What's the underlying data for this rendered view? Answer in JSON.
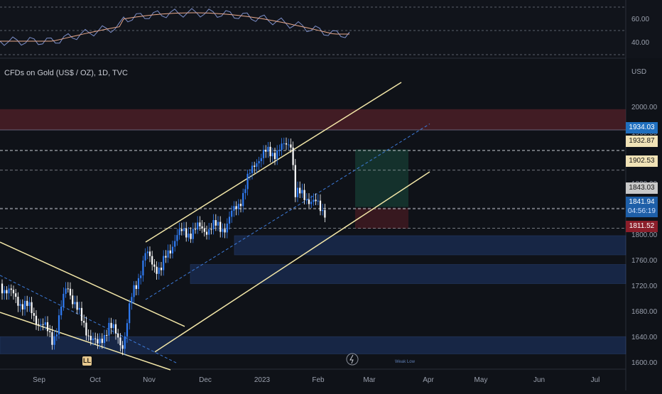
{
  "title": "CFDs on Gold (US$ / OZ), 1D, TVC",
  "currency": "USD",
  "rsi": {
    "ticks": [
      "60.00",
      "40.00"
    ]
  },
  "price_tags": [
    {
      "label": "1934.03",
      "bg": "#1f6fbf",
      "fg": "#ffffff"
    },
    {
      "label": "1932.87",
      "bg": "#f0e2b6",
      "fg": "#1a1a1a"
    },
    {
      "label": "1902.53",
      "bg": "#f0e2b6",
      "fg": "#1a1a1a"
    },
    {
      "label": "1843.03",
      "bg": "#c8c8c8",
      "fg": "#1a1a1a"
    },
    {
      "label": "1841.94",
      "bg": "#1e5fa8",
      "fg": "#ffffff"
    },
    {
      "label": "04:56:19",
      "bg": "#1e5fa8",
      "fg": "#cfe0ff"
    },
    {
      "label": "1811.52",
      "bg": "#8b1e2a",
      "fg": "#ffffff"
    }
  ],
  "badges": {
    "ll": "LL",
    "weak_low": "Weak Low"
  },
  "colors": {
    "background": "#0f1218",
    "channel": "#f3e7a8",
    "up_candle": "#2f7cf6",
    "down_candle": "#ffffff",
    "supply_zone": "#6b2530",
    "demand_zone": "#1f3b73"
  },
  "chart_data": {
    "type": "candlestick",
    "title": "CFDs on Gold (US$ / OZ), 1D, TVC",
    "ylabel": "USD",
    "ylim": [
      1600,
      2040
    ],
    "y_ticks": [
      "2000.00",
      "1960.00",
      "1920.00",
      "1880.00",
      "1840.00",
      "1800.00",
      "1760.00",
      "1720.00",
      "1680.00",
      "1640.00",
      "1600.00"
    ],
    "x_ticks": [
      "Sep",
      "Oct",
      "Nov",
      "Dec",
      "2023",
      "Feb",
      "Mar",
      "Apr",
      "May",
      "Jun",
      "Jul"
    ],
    "close_path": [
      [
        "Aug 29",
        1725
      ],
      [
        "Sep 5",
        1705
      ],
      [
        "Sep 12",
        1690
      ],
      [
        "Sep 19",
        1665
      ],
      [
        "Sep 26",
        1640
      ],
      [
        "Sep 28",
        1650
      ],
      [
        "Oct 4",
        1725
      ],
      [
        "Oct 11",
        1670
      ],
      [
        "Oct 20",
        1625
      ],
      [
        "Oct 26",
        1660
      ],
      [
        "Nov 3",
        1630
      ],
      [
        "Nov 8",
        1710
      ],
      [
        "Nov 15",
        1770
      ],
      [
        "Nov 23",
        1745
      ],
      [
        "Dec 1",
        1800
      ],
      [
        "Dec 13",
        1810
      ],
      [
        "Dec 28",
        1815
      ],
      [
        "Jan 6",
        1865
      ],
      [
        "Jan 13",
        1920
      ],
      [
        "Jan 20",
        1930
      ],
      [
        "Jan 27",
        1935
      ],
      [
        "Feb 1",
        1950
      ],
      [
        "Feb 3",
        1865
      ],
      [
        "Feb 10",
        1860
      ],
      [
        "Feb 17",
        1840
      ],
      [
        "Feb 20",
        1842
      ]
    ],
    "horizontal_levels": [
      1934.03,
      1932.87,
      1902.53,
      1843.03,
      1841.94,
      1811.52
    ],
    "supply_zone": [
      1965,
      1998
    ],
    "demand_zones": [
      [
        1770,
        1800
      ],
      [
        1725,
        1755
      ],
      [
        1615,
        1642
      ]
    ],
    "rsi_range": [
      30,
      70
    ],
    "grid": false
  }
}
